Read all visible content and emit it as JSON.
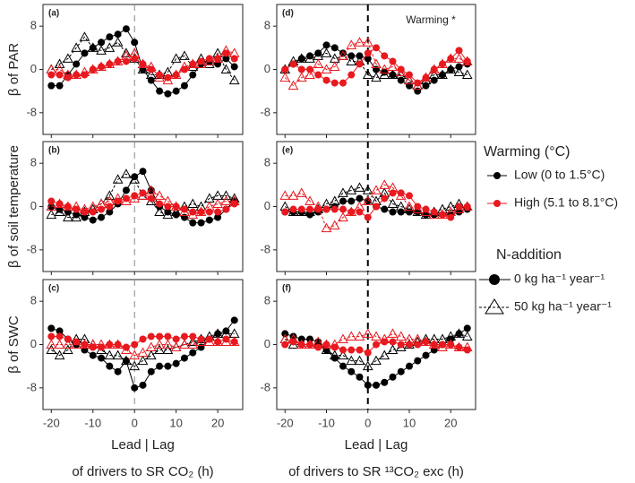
{
  "chart_data": [
    {
      "type": "line",
      "label": "(a)",
      "ylabel": "β of PAR",
      "column": 0,
      "row": 0,
      "show_xticklabels": false,
      "xlim": [
        -22,
        26
      ],
      "ylim": [
        -12,
        12
      ],
      "xticks": [
        -20,
        -10,
        0,
        10,
        20
      ],
      "yticks": [
        -8,
        0,
        8
      ],
      "vline": 0,
      "vline_color": "#888888",
      "vline_width": 1,
      "x": [
        -20,
        -18,
        -16,
        -14,
        -12,
        -10,
        -8,
        -6,
        -4,
        -2,
        0,
        2,
        4,
        6,
        8,
        10,
        12,
        14,
        16,
        18,
        20,
        22,
        24
      ],
      "series": [
        {
          "color": "#000000",
          "marker": "circle",
          "dash": false,
          "values": [
            -3,
            -3,
            -1,
            1,
            3,
            4,
            5,
            6,
            6.5,
            7.5,
            5,
            0,
            -2,
            -4,
            -4.5,
            -4,
            -3,
            -1,
            1,
            1.5,
            1,
            2,
            0.5
          ]
        },
        {
          "color": "#000000",
          "marker": "triangle",
          "dash": true,
          "values": [
            0,
            1,
            2,
            4,
            6,
            4,
            3.5,
            4,
            5,
            3,
            2,
            0,
            -1,
            -1,
            -0.5,
            2,
            2.5,
            0.5,
            2,
            1,
            3,
            0,
            -2
          ]
        },
        {
          "color": "#e8191f",
          "marker": "circle",
          "dash": false,
          "values": [
            -1,
            -1,
            -1.5,
            -1,
            -1,
            0,
            0.5,
            1,
            1.5,
            1.5,
            2,
            1,
            0,
            -1,
            -1.5,
            -1,
            0,
            1,
            1.5,
            2,
            2,
            3,
            2
          ]
        },
        {
          "color": "#e8191f",
          "marker": "triangle",
          "dash": true,
          "values": [
            0,
            0,
            -1,
            -1,
            -0.5,
            0,
            0.5,
            1,
            1.5,
            2.5,
            3,
            1,
            0.5,
            -1.5,
            -2,
            -1,
            0.5,
            1,
            1,
            1.5,
            2,
            3.5,
            3
          ]
        }
      ]
    },
    {
      "type": "line",
      "label": "(b)",
      "ylabel": "β of soil temperature",
      "column": 0,
      "row": 1,
      "show_xticklabels": false,
      "xlim": [
        -22,
        26
      ],
      "ylim": [
        -12,
        12
      ],
      "xticks": [
        -20,
        -10,
        0,
        10,
        20
      ],
      "yticks": [
        -8,
        0,
        8
      ],
      "vline": 0,
      "vline_color": "#888888",
      "vline_width": 1,
      "x": [
        -20,
        -18,
        -16,
        -14,
        -12,
        -10,
        -8,
        -6,
        -4,
        -2,
        0,
        2,
        4,
        6,
        8,
        10,
        12,
        14,
        16,
        18,
        20,
        22,
        24
      ],
      "series": [
        {
          "color": "#000000",
          "marker": "circle",
          "dash": false,
          "values": [
            0,
            -0.5,
            -1,
            -1.5,
            -2,
            -2.5,
            -2,
            -1,
            0.5,
            3,
            5.5,
            6.5,
            3,
            0,
            -1,
            -1.5,
            -2,
            -3,
            -3,
            -2.5,
            -2,
            -0.5,
            1
          ]
        },
        {
          "color": "#000000",
          "marker": "triangle",
          "dash": true,
          "values": [
            -1.5,
            -1,
            -2,
            -2,
            -1,
            -0.5,
            0.5,
            2,
            5,
            6,
            5,
            2,
            1,
            -1,
            -1.5,
            -1,
            0,
            0.5,
            0,
            1.5,
            2,
            2,
            1.5
          ]
        },
        {
          "color": "#e8191f",
          "marker": "circle",
          "dash": false,
          "values": [
            1,
            0.5,
            0,
            -0.5,
            -1,
            -1,
            -0.5,
            0,
            1,
            1.5,
            2,
            2.5,
            1.5,
            0.5,
            0,
            0,
            -0.5,
            -1,
            -1,
            -1,
            -1,
            -0.5,
            0.5
          ]
        },
        {
          "color": "#e8191f",
          "marker": "triangle",
          "dash": true,
          "values": [
            0,
            0.5,
            0,
            0,
            -0.5,
            0,
            0.5,
            1,
            1.5,
            1,
            1.5,
            2,
            3,
            2,
            1,
            0,
            -1,
            -1.5,
            -1,
            0,
            0.5,
            1,
            1
          ]
        }
      ]
    },
    {
      "type": "line",
      "label": "(c)",
      "ylabel": "β of SWC",
      "column": 0,
      "row": 2,
      "show_xticklabels": true,
      "xlabel": [
        "Lead | Lag",
        "of drivers to SR CO₂ (h)"
      ],
      "xlim": [
        -22,
        26
      ],
      "ylim": [
        -12,
        12
      ],
      "xticks": [
        -20,
        -10,
        0,
        10,
        20
      ],
      "yticks": [
        -8,
        0,
        8
      ],
      "vline": 0,
      "vline_color": "#888888",
      "vline_width": 1,
      "x": [
        -20,
        -18,
        -16,
        -14,
        -12,
        -10,
        -8,
        -6,
        -4,
        -2,
        0,
        2,
        4,
        6,
        8,
        10,
        12,
        14,
        16,
        18,
        20,
        22,
        24
      ],
      "series": [
        {
          "color": "#000000",
          "marker": "circle",
          "dash": false,
          "values": [
            3,
            2.5,
            1,
            0,
            -1,
            -2,
            -2.5,
            -4,
            -5,
            -3,
            -8,
            -7.5,
            -5,
            -4,
            -4,
            -3.5,
            -2.5,
            -1.5,
            -0.5,
            1,
            2,
            2.5,
            4.5
          ]
        },
        {
          "color": "#000000",
          "marker": "triangle",
          "dash": true,
          "values": [
            -1,
            -2,
            -1,
            1,
            1,
            0,
            -1,
            -2,
            -2,
            -3,
            -4,
            -3,
            -2,
            -1,
            -1,
            -0.5,
            0,
            0.5,
            1,
            1.5,
            2,
            2,
            2
          ]
        },
        {
          "color": "#e8191f",
          "marker": "circle",
          "dash": false,
          "values": [
            1.5,
            1.5,
            1,
            0.5,
            0,
            -0.5,
            -0.5,
            0,
            0,
            -0.5,
            0,
            1,
            1.5,
            1.5,
            1.5,
            1,
            1.5,
            1.5,
            1,
            1,
            0.5,
            1,
            0.5
          ]
        },
        {
          "color": "#e8191f",
          "marker": "triangle",
          "dash": true,
          "values": [
            0,
            0,
            0,
            0,
            0,
            0,
            0,
            0,
            0,
            -1,
            -2,
            -1.5,
            -0.5,
            0,
            0,
            -0.5,
            0,
            0,
            0.5,
            0.5,
            0.5,
            0.5,
            0.5
          ]
        }
      ]
    },
    {
      "type": "line",
      "label": "(d)",
      "annotation": "Warming *",
      "column": 1,
      "row": 0,
      "show_xticklabels": false,
      "xlim": [
        -22,
        26
      ],
      "ylim": [
        -12,
        12
      ],
      "xticks": [
        -20,
        -10,
        0,
        10,
        20
      ],
      "yticks": [
        -8,
        0,
        8
      ],
      "vline": 0,
      "vline_color": "#000000",
      "vline_width": 2,
      "x": [
        -20,
        -18,
        -16,
        -14,
        -12,
        -10,
        -8,
        -6,
        -4,
        -2,
        0,
        2,
        4,
        6,
        8,
        10,
        12,
        14,
        16,
        18,
        20,
        22,
        24
      ],
      "series": [
        {
          "color": "#000000",
          "marker": "circle",
          "dash": false,
          "values": [
            0,
            1,
            2,
            2.5,
            3,
            4.5,
            4,
            3,
            2.5,
            2.5,
            2,
            0,
            -0.5,
            -1,
            -2,
            -3,
            -4,
            -3,
            -2,
            -1,
            0,
            0.5,
            1
          ]
        },
        {
          "color": "#000000",
          "marker": "triangle",
          "dash": true,
          "values": [
            0,
            1.5,
            2,
            2,
            2.5,
            3,
            2,
            2.5,
            1.5,
            1.5,
            -1,
            -1.5,
            -1,
            -1,
            -1,
            -2,
            -3,
            -2,
            -1,
            -1,
            0,
            -0.5,
            -1
          ]
        },
        {
          "color": "#e8191f",
          "marker": "circle",
          "dash": false,
          "values": [
            0,
            1,
            0,
            0,
            -1,
            -2,
            -2.5,
            -2.5,
            -1,
            1,
            3,
            4,
            2.5,
            1.5,
            0,
            -1,
            -2.5,
            -1.5,
            0,
            1,
            2,
            3.5,
            1.5
          ]
        },
        {
          "color": "#e8191f",
          "marker": "triangle",
          "dash": true,
          "values": [
            -1.5,
            -3,
            -1.5,
            -1,
            1,
            0,
            0.5,
            2.5,
            4.5,
            5,
            5,
            1,
            0,
            0.5,
            -0.5,
            -2,
            -3,
            -1.5,
            0,
            1,
            2,
            2,
            1.5
          ]
        }
      ]
    },
    {
      "type": "line",
      "label": "(e)",
      "column": 1,
      "row": 1,
      "show_xticklabels": false,
      "xlim": [
        -22,
        26
      ],
      "ylim": [
        -12,
        12
      ],
      "xticks": [
        -20,
        -10,
        0,
        10,
        20
      ],
      "yticks": [
        -8,
        0,
        8
      ],
      "vline": 0,
      "vline_color": "#000000",
      "vline_width": 2,
      "x": [
        -20,
        -18,
        -16,
        -14,
        -12,
        -10,
        -8,
        -6,
        -4,
        -2,
        0,
        2,
        4,
        6,
        8,
        10,
        12,
        14,
        16,
        18,
        20,
        22,
        24
      ],
      "series": [
        {
          "color": "#000000",
          "marker": "circle",
          "dash": false,
          "values": [
            -1,
            -1,
            -1,
            -1.5,
            -1,
            -0.5,
            0,
            1,
            1,
            1.5,
            1,
            0,
            -0.5,
            -1,
            -1,
            -1,
            -1,
            -1.5,
            -1.5,
            -1.5,
            -1.5,
            -1,
            -0.5
          ]
        },
        {
          "color": "#000000",
          "marker": "triangle",
          "dash": true,
          "values": [
            0,
            -1,
            -1,
            -1,
            -0.5,
            0.5,
            1,
            2.5,
            3,
            3.5,
            3,
            1,
            2.5,
            0.5,
            0,
            -0.5,
            -1,
            -1.5,
            -1,
            -0.5,
            0,
            0.5,
            0
          ]
        },
        {
          "color": "#e8191f",
          "marker": "circle",
          "dash": false,
          "values": [
            -1,
            -0.5,
            -0.5,
            -0.5,
            -0.5,
            -0.5,
            -0.5,
            -0.5,
            -1,
            -1,
            -2,
            0,
            1.5,
            2.5,
            2.5,
            2,
            0,
            -0.5,
            -1,
            -1.5,
            -2,
            0,
            0
          ]
        },
        {
          "color": "#e8191f",
          "marker": "triangle",
          "dash": true,
          "values": [
            2,
            2,
            2.5,
            1,
            0,
            -4,
            -3.5,
            -2,
            -1,
            0,
            1,
            3,
            4,
            3.5,
            2,
            0,
            -0.5,
            -1,
            -1.5,
            -1.5,
            -1,
            -0.5,
            0
          ]
        }
      ]
    },
    {
      "type": "line",
      "label": "(f)",
      "column": 1,
      "row": 2,
      "show_xticklabels": true,
      "xlabel": [
        "Lead | Lag",
        "of drivers to SR ¹³CO₂ exc (h)"
      ],
      "xlim": [
        -22,
        26
      ],
      "ylim": [
        -12,
        12
      ],
      "xticks": [
        -20,
        -10,
        0,
        10,
        20
      ],
      "yticks": [
        -8,
        0,
        8
      ],
      "vline": 0,
      "vline_color": "#000000",
      "vline_width": 2,
      "x": [
        -20,
        -18,
        -16,
        -14,
        -12,
        -10,
        -8,
        -6,
        -4,
        -2,
        0,
        2,
        4,
        6,
        8,
        10,
        12,
        14,
        16,
        18,
        20,
        22,
        24
      ],
      "series": [
        {
          "color": "#000000",
          "marker": "circle",
          "dash": false,
          "values": [
            2,
            1.5,
            1,
            1,
            0.5,
            -1,
            -2.5,
            -4,
            -5,
            -6,
            -7.5,
            -7.5,
            -7,
            -6,
            -5,
            -4,
            -3,
            -2,
            -1,
            0,
            1,
            2,
            3
          ]
        },
        {
          "color": "#000000",
          "marker": "triangle",
          "dash": true,
          "values": [
            1,
            0,
            0,
            0,
            0,
            -1,
            -2,
            -2,
            -3,
            -3,
            -4,
            -3,
            -2,
            -1,
            -0.5,
            0,
            0.5,
            1,
            1,
            1,
            1.5,
            2,
            1.5
          ]
        },
        {
          "color": "#e8191f",
          "marker": "circle",
          "dash": false,
          "values": [
            0,
            0.5,
            0,
            0,
            -0.5,
            0,
            -0.5,
            -1,
            -1,
            -1,
            -1.5,
            0,
            0.5,
            0.5,
            0,
            0,
            0,
            0.5,
            0,
            0,
            0,
            -0.5,
            -1
          ]
        },
        {
          "color": "#e8191f",
          "marker": "triangle",
          "dash": true,
          "values": [
            1,
            1,
            0,
            0,
            0.5,
            0,
            0,
            1,
            1.5,
            1.5,
            2,
            1.5,
            1,
            2,
            1.5,
            1,
            1,
            0.5,
            0,
            -0.5,
            0,
            -0.5,
            -0.5
          ]
        }
      ]
    }
  ],
  "legend": {
    "warming_title": "Warming (°C)",
    "warming_items": [
      {
        "label": "Low (0 to 1.5°C)",
        "color": "#000000"
      },
      {
        "label": "High (5.1 to 8.1°C)",
        "color": "#e8191f"
      }
    ],
    "n_title": "N-addition",
    "n_items": [
      {
        "label": "0 kg ha⁻¹ year⁻¹",
        "marker": "circle",
        "dash": false
      },
      {
        "label": "50 kg ha⁻¹ year⁻¹",
        "marker": "triangle",
        "dash": true
      }
    ]
  }
}
